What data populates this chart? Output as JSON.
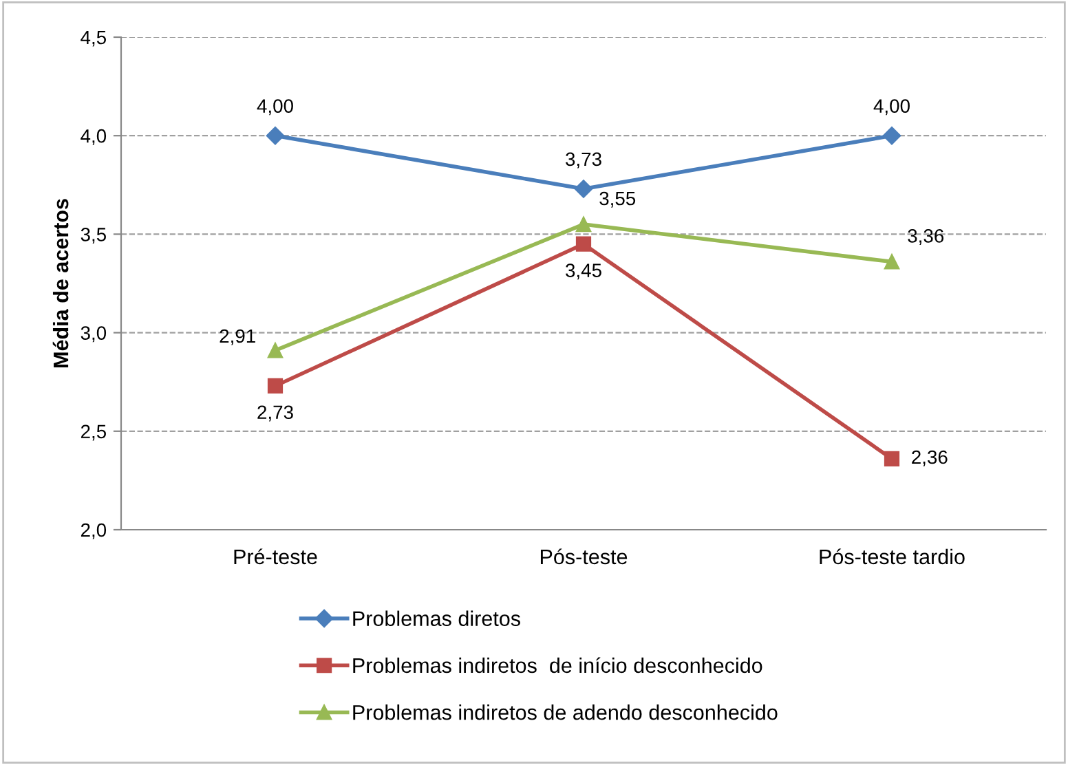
{
  "chart_data": {
    "type": "line",
    "ylabel": "Média de acertos",
    "categories": [
      "Pré-teste",
      "Pós-teste",
      "Pós-teste tardio"
    ],
    "series": [
      {
        "name": "Problemas diretos",
        "color": "#4a7ebb",
        "marker": "diamond",
        "values": [
          4.0,
          3.73,
          4.0
        ],
        "value_labels": [
          "4,00",
          "3,73",
          "4,00"
        ]
      },
      {
        "name": "Problemas indiretos  de início desconhecido",
        "color": "#be4b48",
        "marker": "square",
        "values": [
          2.73,
          3.45,
          2.36
        ],
        "value_labels": [
          "2,73",
          "3,45",
          "2,36"
        ]
      },
      {
        "name": "Problemas indiretos de adendo desconhecido",
        "color": "#98b954",
        "marker": "triangle",
        "values": [
          2.91,
          3.55,
          3.36
        ],
        "value_labels": [
          "2,91",
          "3,55",
          "3,36"
        ]
      }
    ],
    "ylim": [
      2.0,
      4.5
    ],
    "yticks": [
      {
        "value": 2.0,
        "label": "2,0"
      },
      {
        "value": 2.5,
        "label": "2,5"
      },
      {
        "value": 3.0,
        "label": "3,0"
      },
      {
        "value": 3.5,
        "label": "3,5"
      },
      {
        "value": 4.0,
        "label": "4,0"
      },
      {
        "value": 4.5,
        "label": "4,5"
      }
    ],
    "grid": "y",
    "legend": "bottom",
    "line_style": "solid"
  }
}
